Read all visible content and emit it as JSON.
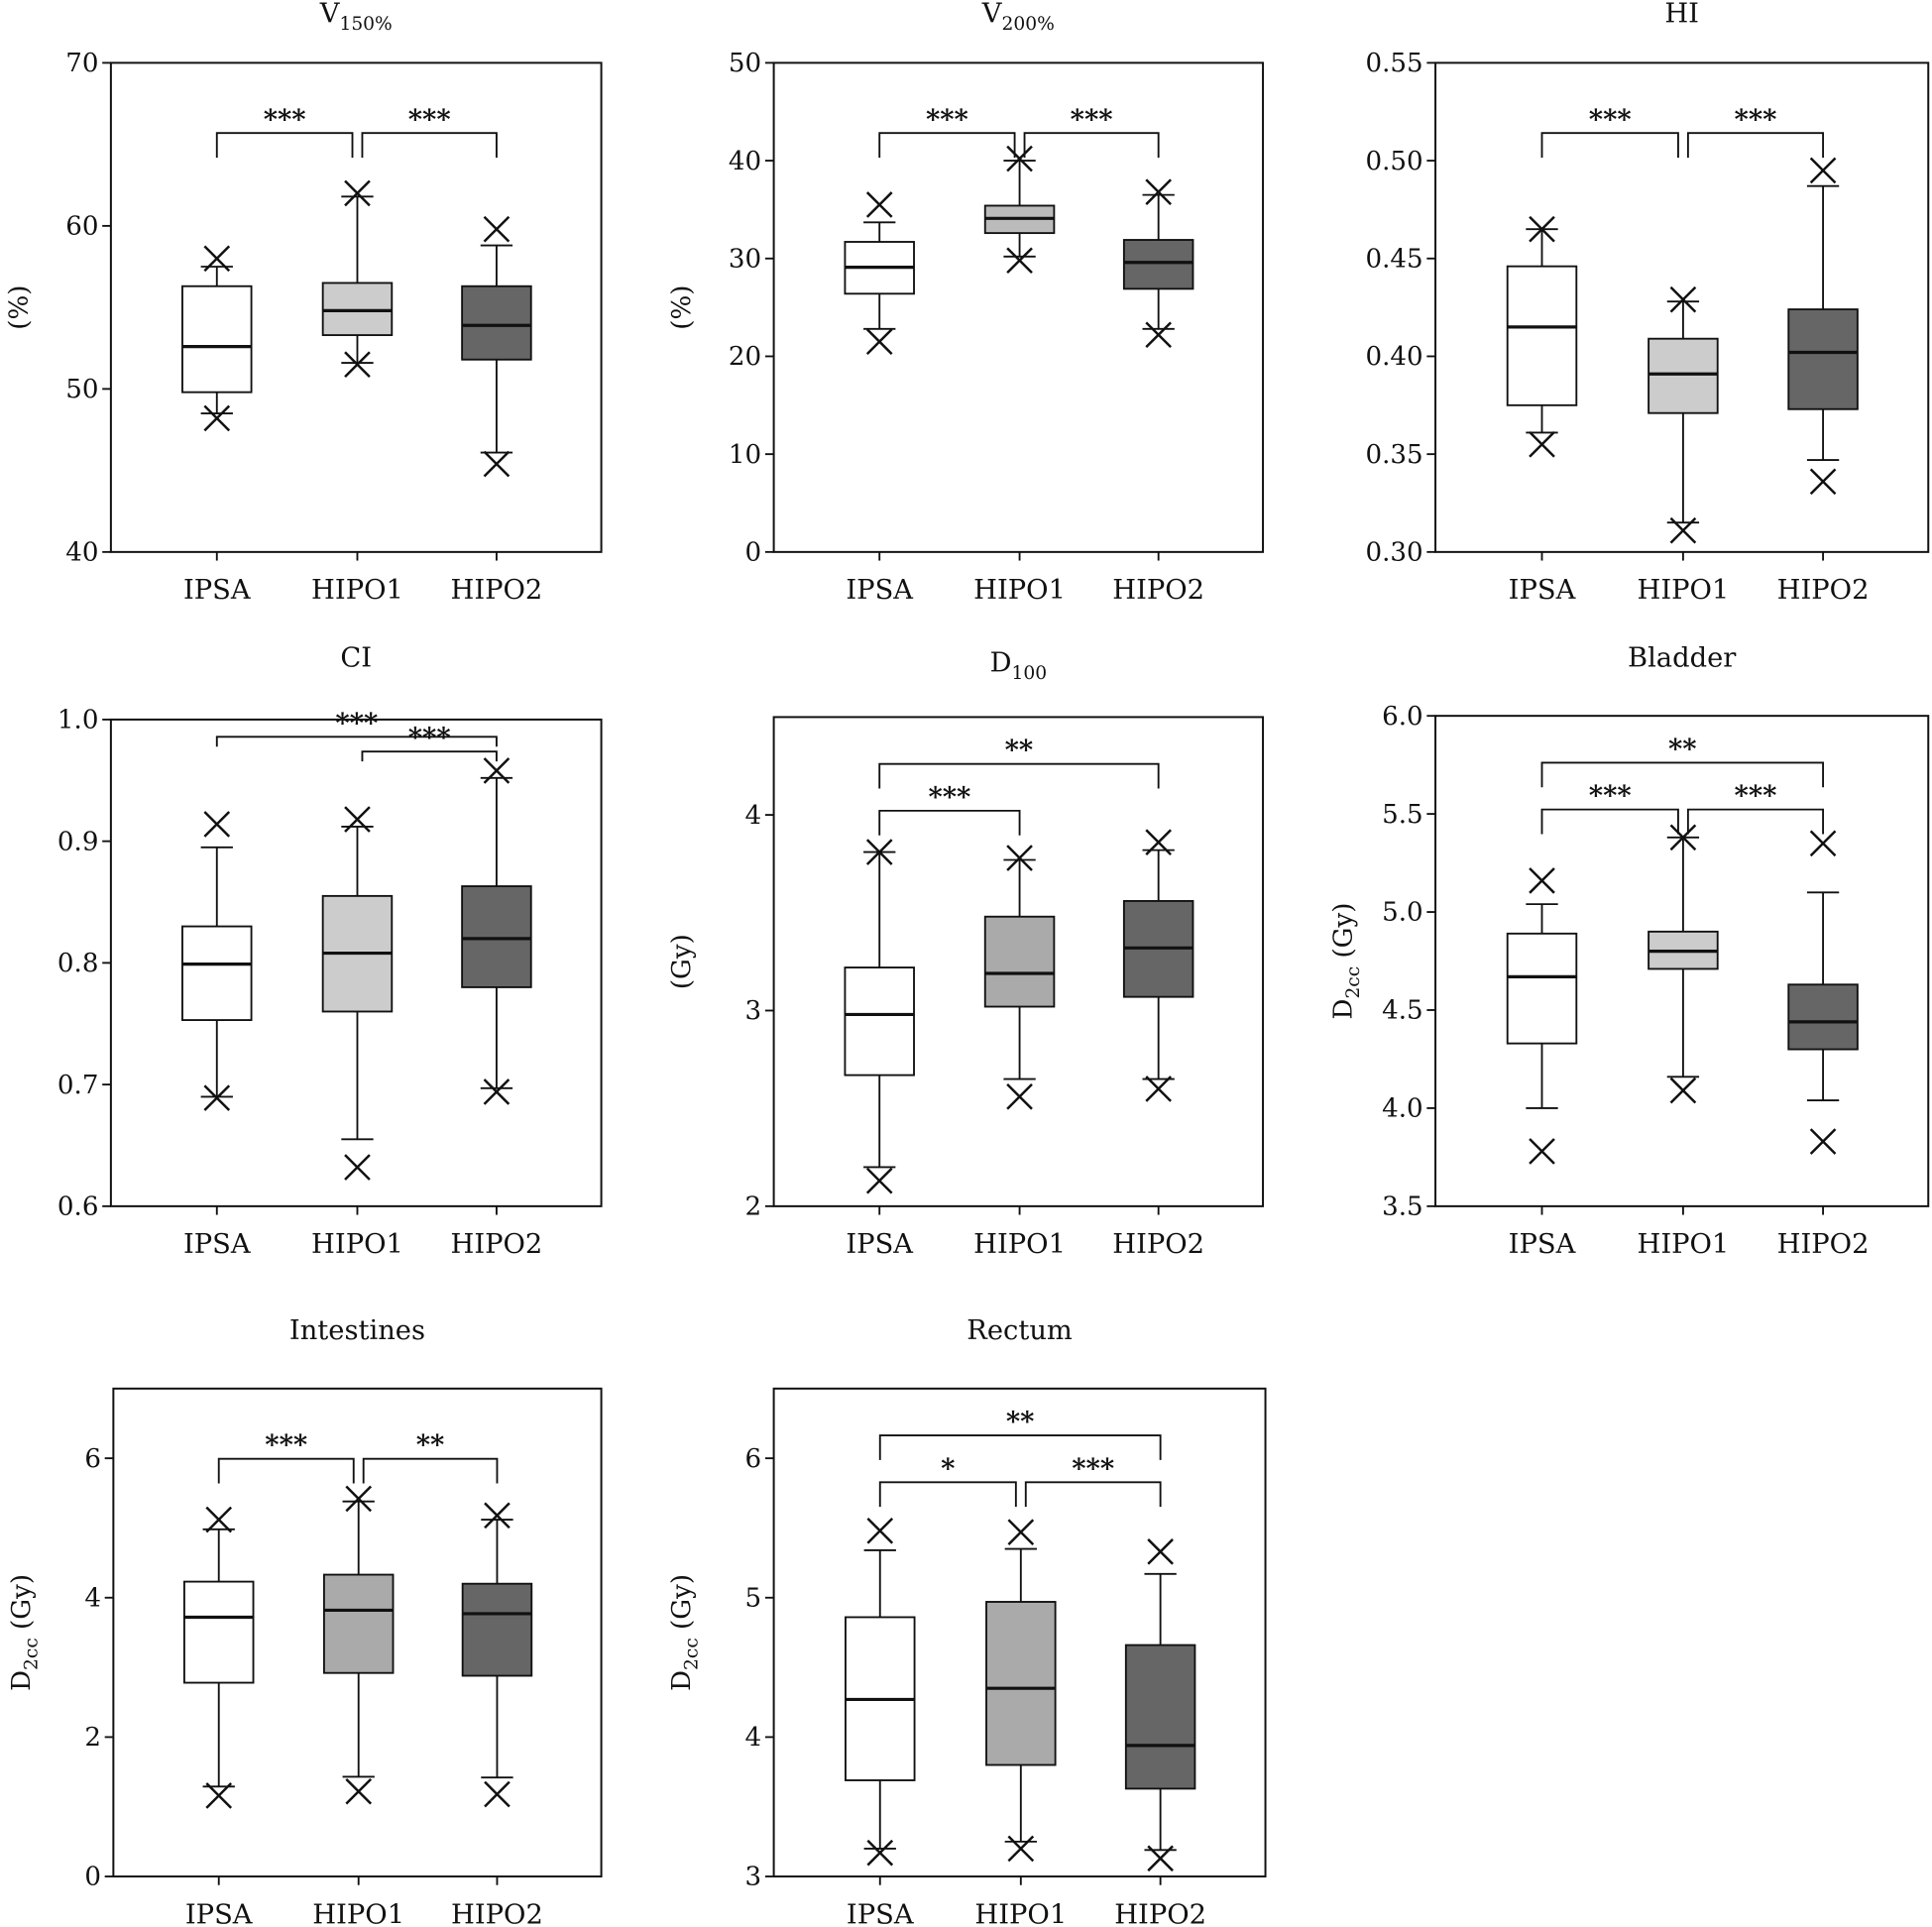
{
  "chart_data": [
    {
      "type": "box",
      "title": {
        "main": "V",
        "sub": "150%"
      },
      "ylabel": {
        "main": "(%)",
        "sub": "",
        "tail": ""
      },
      "ylim": [
        40,
        70
      ],
      "yticks": [
        "40",
        "50",
        "60",
        "70"
      ],
      "categories": [
        "IPSA",
        "HIPO1",
        "HIPO2"
      ],
      "colors": [
        "#ffffff",
        "#cccccc",
        "#666666"
      ],
      "boxes": [
        {
          "whisker_low": 48.5,
          "q1": 49.8,
          "median": 52.6,
          "q3": 56.3,
          "whisker_high": 57.5,
          "min_marker": 48.2,
          "max_marker": 58.0
        },
        {
          "whisker_low": 51.6,
          "q1": 53.3,
          "median": 54.8,
          "q3": 56.5,
          "whisker_high": 61.8,
          "min_marker": 51.5,
          "max_marker": 62.0
        },
        {
          "whisker_low": 46.1,
          "q1": 51.8,
          "median": 53.9,
          "q3": 56.3,
          "whisker_high": 58.8,
          "min_marker": 45.4,
          "max_marker": 59.8
        }
      ],
      "comparisons": [
        {
          "from": 0,
          "to": 1,
          "label": "***",
          "level": 0
        },
        {
          "from": 1,
          "to": 2,
          "label": "***",
          "level": 0
        }
      ]
    },
    {
      "type": "box",
      "title": {
        "main": "V",
        "sub": "200%"
      },
      "ylabel": {
        "main": "(%)",
        "sub": "",
        "tail": ""
      },
      "ylim": [
        0,
        50
      ],
      "yticks": [
        "0",
        "10",
        "20",
        "30",
        "40",
        "50"
      ],
      "categories": [
        "IPSA",
        "HIPO1",
        "HIPO2"
      ],
      "colors": [
        "#ffffff",
        "#bbbbbb",
        "#666666"
      ],
      "boxes": [
        {
          "whisker_low": 22.8,
          "q1": 26.4,
          "median": 29.1,
          "q3": 31.7,
          "whisker_high": 33.7,
          "min_marker": 21.5,
          "max_marker": 35.5
        },
        {
          "whisker_low": 30.2,
          "q1": 32.6,
          "median": 34.1,
          "q3": 35.4,
          "whisker_high": 40.0,
          "min_marker": 29.8,
          "max_marker": 40.2
        },
        {
          "whisker_low": 22.8,
          "q1": 26.9,
          "median": 29.6,
          "q3": 31.9,
          "whisker_high": 36.5,
          "min_marker": 22.2,
          "max_marker": 36.8
        }
      ],
      "comparisons": [
        {
          "from": 0,
          "to": 1,
          "label": "***",
          "level": 0
        },
        {
          "from": 1,
          "to": 2,
          "label": "***",
          "level": 0
        }
      ]
    },
    {
      "type": "box",
      "title": {
        "main": "HI",
        "sub": ""
      },
      "ylabel": {
        "main": "",
        "sub": "",
        "tail": ""
      },
      "ylim": [
        0.3,
        0.55
      ],
      "yticks": [
        "0.30",
        "0.35",
        "0.40",
        "0.45",
        "0.50",
        "0.55"
      ],
      "categories": [
        "IPSA",
        "HIPO1",
        "HIPO2"
      ],
      "colors": [
        "#ffffff",
        "#cccccc",
        "#666666"
      ],
      "boxes": [
        {
          "whisker_low": 0.361,
          "q1": 0.375,
          "median": 0.415,
          "q3": 0.446,
          "whisker_high": 0.465,
          "min_marker": 0.355,
          "max_marker": 0.465
        },
        {
          "whisker_low": 0.315,
          "q1": 0.371,
          "median": 0.391,
          "q3": 0.409,
          "whisker_high": 0.428,
          "min_marker": 0.311,
          "max_marker": 0.429
        },
        {
          "whisker_low": 0.347,
          "q1": 0.373,
          "median": 0.402,
          "q3": 0.424,
          "whisker_high": 0.487,
          "min_marker": 0.336,
          "max_marker": 0.495
        }
      ],
      "comparisons": [
        {
          "from": 0,
          "to": 1,
          "label": "***",
          "level": 0
        },
        {
          "from": 1,
          "to": 2,
          "label": "***",
          "level": 0
        }
      ]
    },
    {
      "type": "box",
      "title": {
        "main": "CI",
        "sub": ""
      },
      "ylabel": {
        "main": "",
        "sub": "",
        "tail": ""
      },
      "ylim": [
        0.6,
        1.0
      ],
      "yticks": [
        "0.6",
        "0.7",
        "0.8",
        "0.9",
        "1.0"
      ],
      "categories": [
        "IPSA",
        "HIPO1",
        "HIPO2"
      ],
      "colors": [
        "#ffffff",
        "#cccccc",
        "#666666"
      ],
      "boxes": [
        {
          "whisker_low": 0.69,
          "q1": 0.753,
          "median": 0.799,
          "q3": 0.83,
          "whisker_high": 0.895,
          "min_marker": 0.689,
          "max_marker": 0.914
        },
        {
          "whisker_low": 0.655,
          "q1": 0.76,
          "median": 0.808,
          "q3": 0.855,
          "whisker_high": 0.912,
          "min_marker": 0.632,
          "max_marker": 0.918
        },
        {
          "whisker_low": 0.697,
          "q1": 0.78,
          "median": 0.82,
          "q3": 0.863,
          "whisker_high": 0.952,
          "min_marker": 0.694,
          "max_marker": 0.958
        }
      ],
      "comparisons": [
        {
          "from": 0,
          "to": 2,
          "label": "***",
          "level": 1
        },
        {
          "from": 1,
          "to": 2,
          "label": "***",
          "level": 0
        }
      ]
    },
    {
      "type": "box",
      "title": {
        "main": "D",
        "sub": "100"
      },
      "ylabel": {
        "main": "(Gy)",
        "sub": "",
        "tail": ""
      },
      "ylim": [
        2,
        4.5
      ],
      "yticks": [
        "2",
        "3",
        "4"
      ],
      "categories": [
        "IPSA",
        "HIPO1",
        "HIPO2"
      ],
      "colors": [
        "#ffffff",
        "#aaaaaa",
        "#666666"
      ],
      "boxes": [
        {
          "whisker_low": 2.2,
          "q1": 2.67,
          "median": 2.98,
          "q3": 3.22,
          "whisker_high": 3.81,
          "min_marker": 2.13,
          "max_marker": 3.81
        },
        {
          "whisker_low": 2.65,
          "q1": 3.02,
          "median": 3.19,
          "q3": 3.48,
          "whisker_high": 3.77,
          "min_marker": 2.56,
          "max_marker": 3.78
        },
        {
          "whisker_low": 2.65,
          "q1": 3.07,
          "median": 3.32,
          "q3": 3.56,
          "whisker_high": 3.82,
          "min_marker": 2.6,
          "max_marker": 3.86
        }
      ],
      "comparisons": [
        {
          "from": 0,
          "to": 2,
          "label": "**",
          "level": 1
        },
        {
          "from": 0,
          "to": 1,
          "label": "***",
          "level": 0
        }
      ]
    },
    {
      "type": "box",
      "title": {
        "main": "Bladder",
        "sub": ""
      },
      "ylabel": {
        "main": "D",
        "sub": "2cc",
        "tail": " (Gy)"
      },
      "ylim": [
        3.5,
        6.0
      ],
      "yticks": [
        "3.5",
        "4.0",
        "4.5",
        "5.0",
        "5.5",
        "6.0"
      ],
      "categories": [
        "IPSA",
        "HIPO1",
        "HIPO2"
      ],
      "colors": [
        "#ffffff",
        "#cccccc",
        "#666666"
      ],
      "boxes": [
        {
          "whisker_low": 4.0,
          "q1": 4.33,
          "median": 4.67,
          "q3": 4.89,
          "whisker_high": 5.04,
          "min_marker": 3.78,
          "max_marker": 5.16
        },
        {
          "whisker_low": 4.16,
          "q1": 4.71,
          "median": 4.8,
          "q3": 4.9,
          "whisker_high": 5.38,
          "min_marker": 4.09,
          "max_marker": 5.38
        },
        {
          "whisker_low": 4.04,
          "q1": 4.3,
          "median": 4.44,
          "q3": 4.63,
          "whisker_high": 5.1,
          "min_marker": 3.83,
          "max_marker": 5.35
        }
      ],
      "comparisons": [
        {
          "from": 0,
          "to": 2,
          "label": "**",
          "level": 1
        },
        {
          "from": 0,
          "to": 1,
          "label": "***",
          "level": 0
        },
        {
          "from": 1,
          "to": 2,
          "label": "***",
          "level": 0
        }
      ]
    },
    {
      "type": "box",
      "title": {
        "main": "Intestines",
        "sub": ""
      },
      "ylabel": {
        "main": "D",
        "sub": "2cc",
        "tail": " (Gy)"
      },
      "ylim": [
        0,
        7
      ],
      "yticks": [
        "0",
        "2",
        "4",
        "6"
      ],
      "categories": [
        "IPSA",
        "HIPO1",
        "HIPO2"
      ],
      "colors": [
        "#ffffff",
        "#aaaaaa",
        "#666666"
      ],
      "boxes": [
        {
          "whisker_low": 1.29,
          "q1": 2.78,
          "median": 3.72,
          "q3": 4.23,
          "whisker_high": 4.98,
          "min_marker": 1.16,
          "max_marker": 5.12
        },
        {
          "whisker_low": 1.43,
          "q1": 2.92,
          "median": 3.82,
          "q3": 4.33,
          "whisker_high": 5.38,
          "min_marker": 1.22,
          "max_marker": 5.42
        },
        {
          "whisker_low": 1.42,
          "q1": 2.88,
          "median": 3.77,
          "q3": 4.2,
          "whisker_high": 5.12,
          "min_marker": 1.18,
          "max_marker": 5.18
        }
      ],
      "comparisons": [
        {
          "from": 0,
          "to": 1,
          "label": "***",
          "level": 0
        },
        {
          "from": 1,
          "to": 2,
          "label": "**",
          "level": 0
        }
      ]
    },
    {
      "type": "box",
      "title": {
        "main": "Rectum",
        "sub": ""
      },
      "ylabel": {
        "main": "D",
        "sub": "2cc",
        "tail": " (Gy)"
      },
      "ylim": [
        3,
        6.5
      ],
      "yticks": [
        "3",
        "4",
        "5",
        "6"
      ],
      "categories": [
        "IPSA",
        "HIPO1",
        "HIPO2"
      ],
      "colors": [
        "#ffffff",
        "#aaaaaa",
        "#666666"
      ],
      "boxes": [
        {
          "whisker_low": 3.2,
          "q1": 3.69,
          "median": 4.27,
          "q3": 4.86,
          "whisker_high": 5.34,
          "min_marker": 3.17,
          "max_marker": 5.48
        },
        {
          "whisker_low": 3.25,
          "q1": 3.8,
          "median": 4.35,
          "q3": 4.97,
          "whisker_high": 5.35,
          "min_marker": 3.2,
          "max_marker": 5.47
        },
        {
          "whisker_low": 3.19,
          "q1": 3.63,
          "median": 3.94,
          "q3": 4.66,
          "whisker_high": 5.17,
          "min_marker": 3.13,
          "max_marker": 5.33
        }
      ],
      "comparisons": [
        {
          "from": 0,
          "to": 2,
          "label": "**",
          "level": 1
        },
        {
          "from": 0,
          "to": 1,
          "label": "*",
          "level": 0
        },
        {
          "from": 1,
          "to": 2,
          "label": "***",
          "level": 0
        }
      ]
    }
  ]
}
